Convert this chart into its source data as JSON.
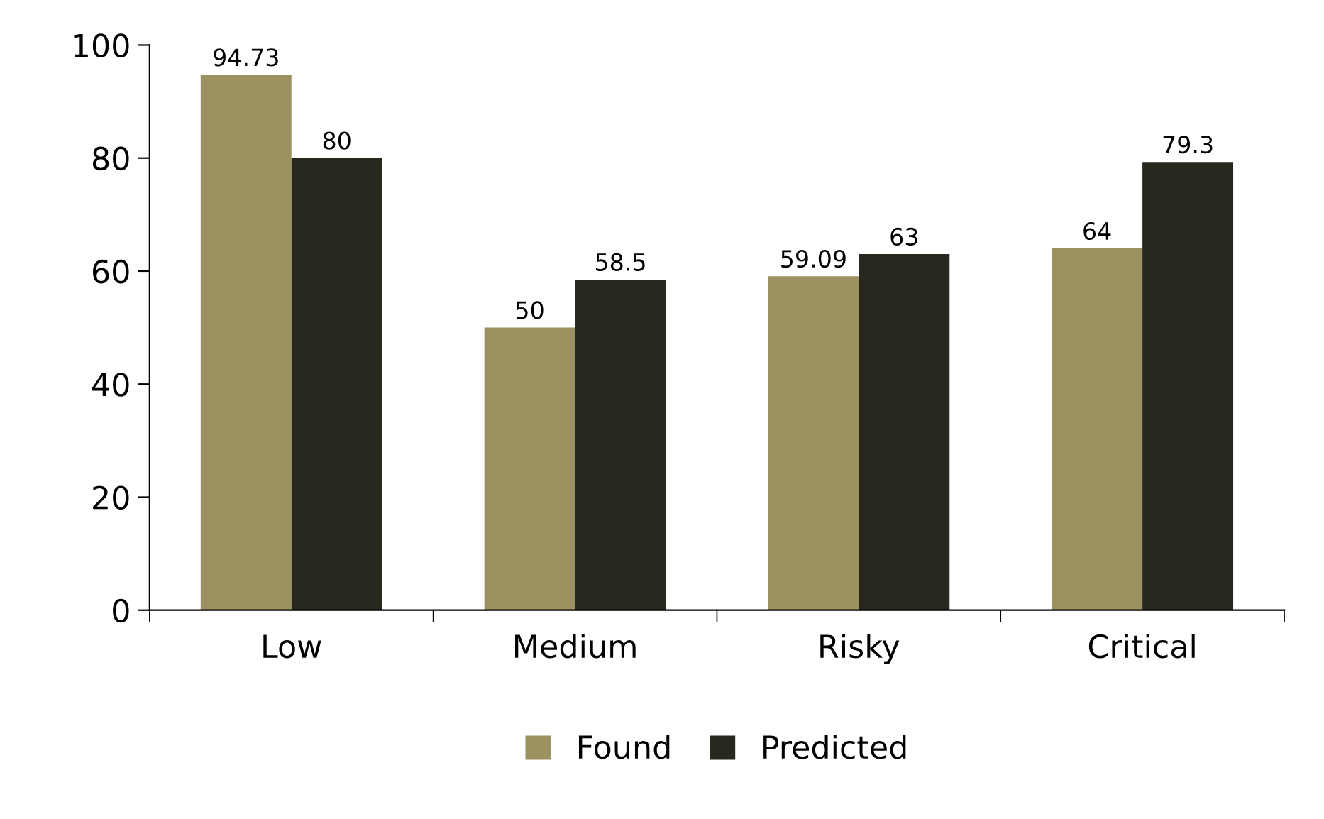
{
  "chart_data": {
    "type": "bar",
    "categories": [
      "Low",
      "Medium",
      "Risky",
      "Critical"
    ],
    "series": [
      {
        "name": "Found",
        "color": "#9c9160",
        "values": [
          94.73,
          50,
          59.09,
          64
        ]
      },
      {
        "name": "Predicted",
        "color": "#29281f",
        "values": [
          80,
          58.5,
          63,
          79.3
        ]
      }
    ],
    "ylim": [
      0,
      100
    ],
    "yticks": [
      0,
      20,
      40,
      60,
      80,
      100
    ],
    "data_labels": true,
    "legend": "bottom",
    "grid": false
  }
}
